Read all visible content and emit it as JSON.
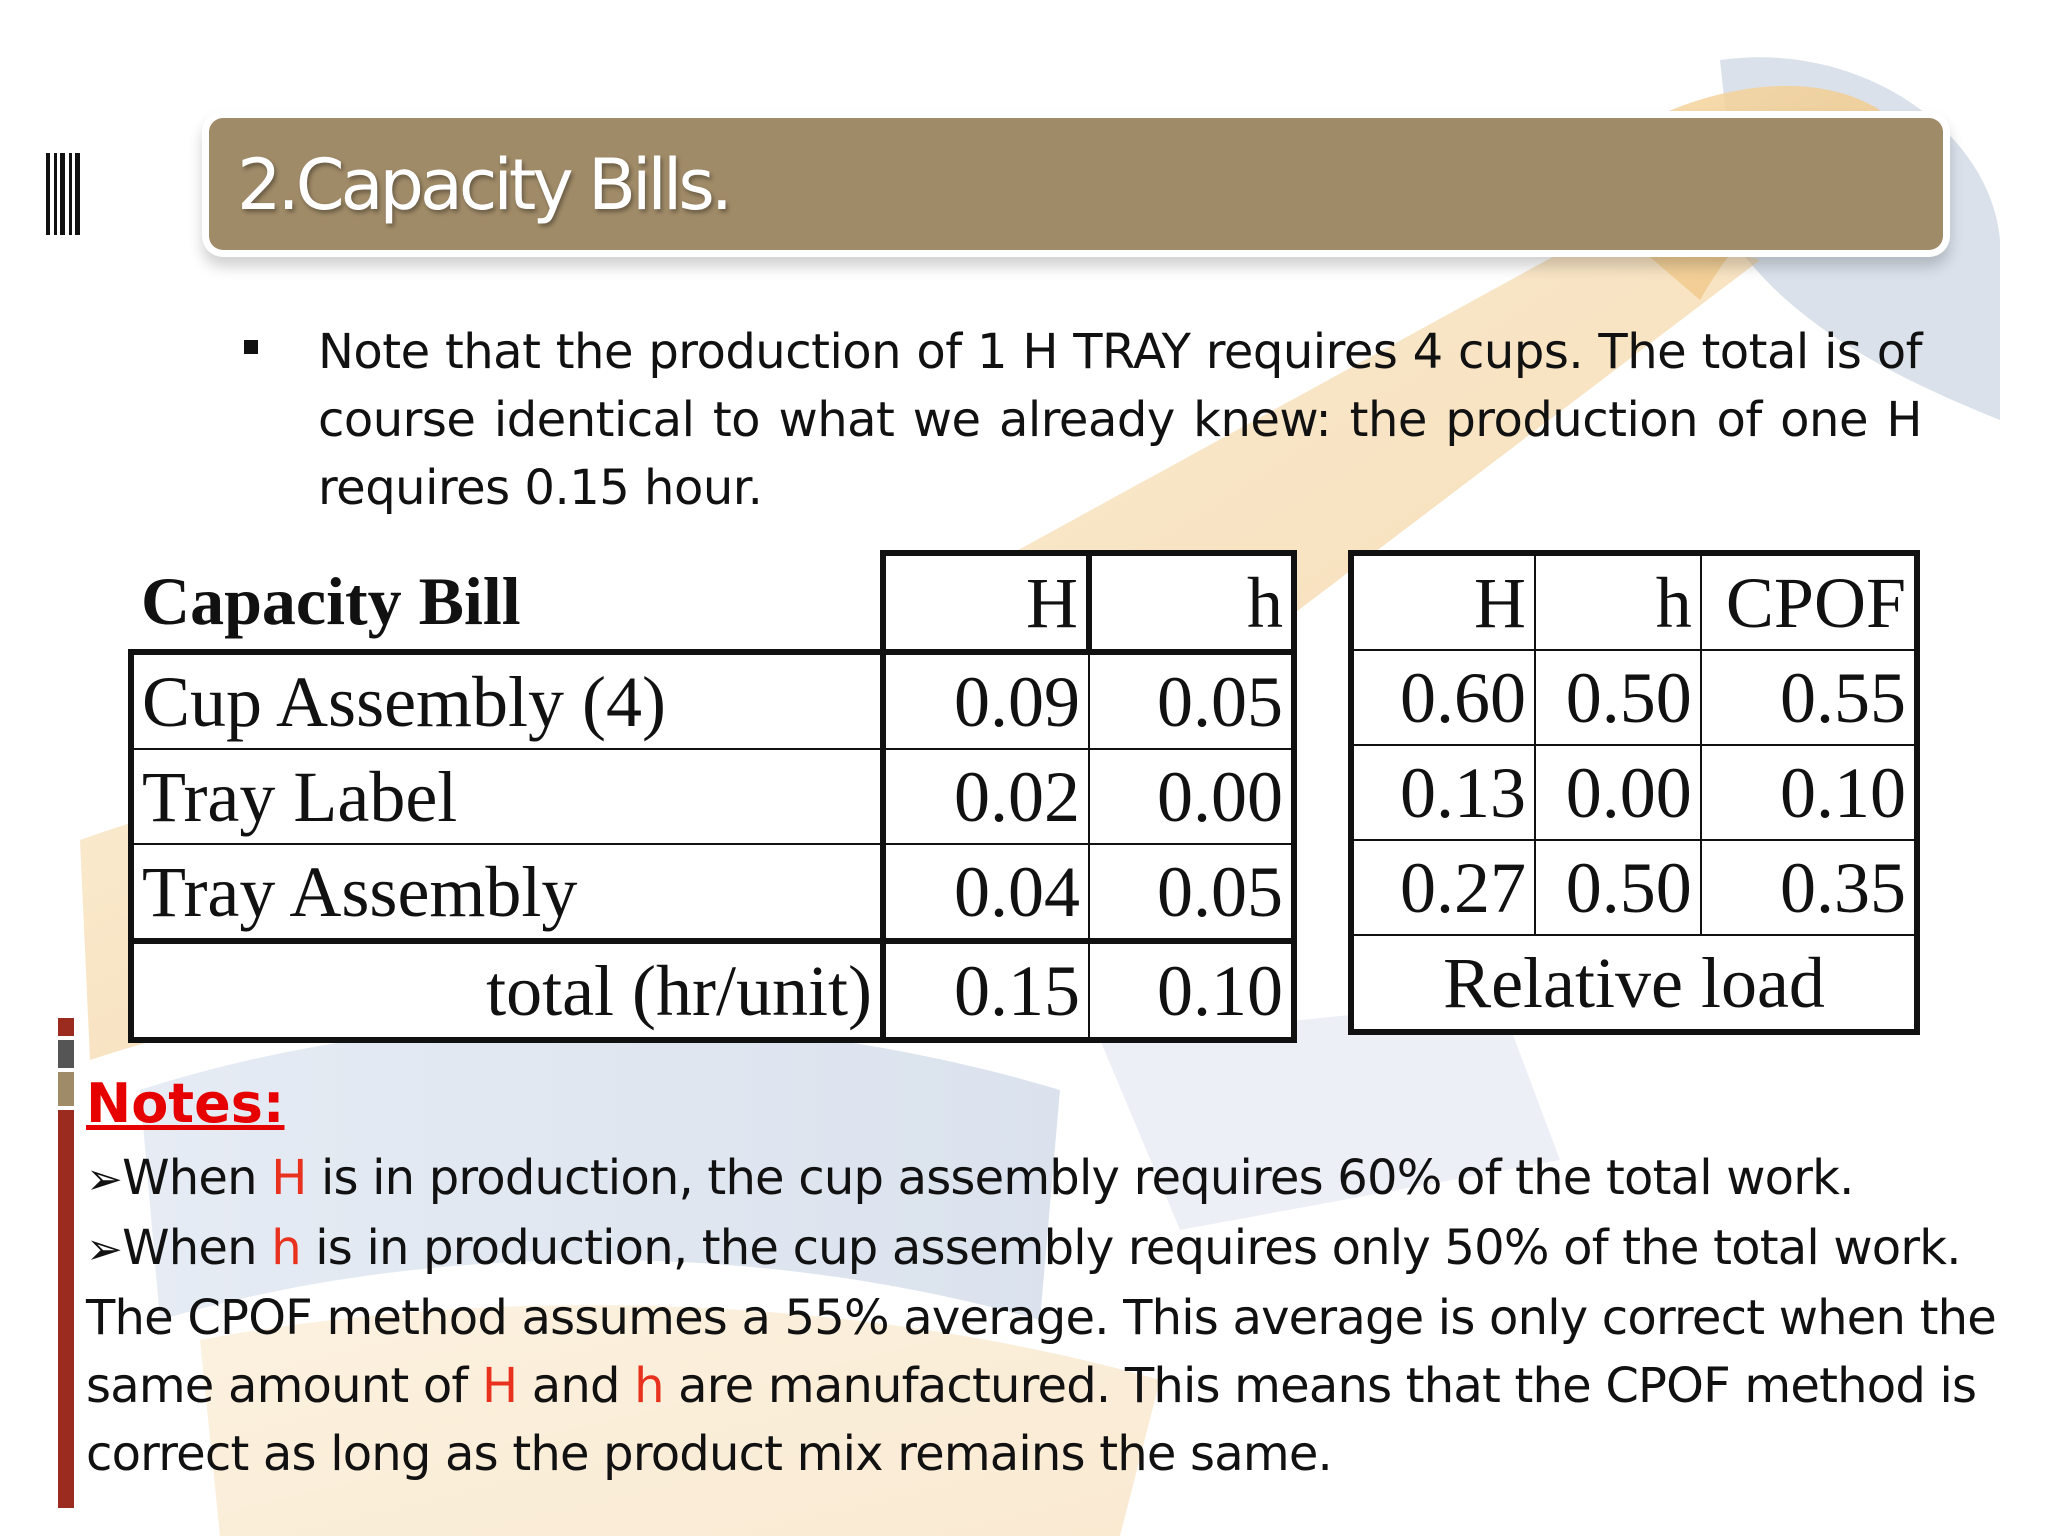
{
  "slide": {
    "title": "2.Capacity Bills.",
    "bullet": "Note that the production of 1 H TRAY requires 4 cups. The total is of course identical to what we already knew: the production of one H requires 0.15 hour."
  },
  "capacity_bill": {
    "title": "Capacity Bill",
    "columns": [
      "H",
      "h"
    ],
    "rows": [
      {
        "label": "Cup Assembly (4)",
        "H": "0.09",
        "h": "0.05"
      },
      {
        "label": "Tray Label",
        "H": "0.02",
        "h": "0.00"
      },
      {
        "label": "Tray Assembly",
        "H": "0.04",
        "h": "0.05"
      }
    ],
    "total_label": "total (hr/unit)",
    "total": {
      "H": "0.15",
      "h": "0.10"
    }
  },
  "relative_load": {
    "columns": [
      "H",
      "h",
      "CPOF"
    ],
    "rows": [
      [
        "0.60",
        "0.50",
        "0.55"
      ],
      [
        "0.13",
        "0.00",
        "0.10"
      ],
      [
        "0.27",
        "0.50",
        "0.35"
      ]
    ],
    "footer": "Relative load"
  },
  "notes": {
    "title": "Notes:",
    "arrow": "➢",
    "line1": {
      "a": "When ",
      "b": "H",
      "c": " is in production, the cup assembly requires 60% of the total work."
    },
    "line2": {
      "a": "When ",
      "b": "h",
      "c": " is in production, the cup assembly requires only 50% of the total work."
    },
    "line3": "The CPOF method assumes a 55% average. This average is only correct when the",
    "line4": {
      "a": "same amount of ",
      "b": "H",
      "c": " and ",
      "d": "h",
      "e": " are manufactured. This means that the CPOF method is"
    },
    "line5": "correct as long as the product mix remains the same."
  },
  "colors": {
    "title_bar": "#a08b68",
    "accent_red": "#e60000",
    "highlight": "#e8321e"
  }
}
